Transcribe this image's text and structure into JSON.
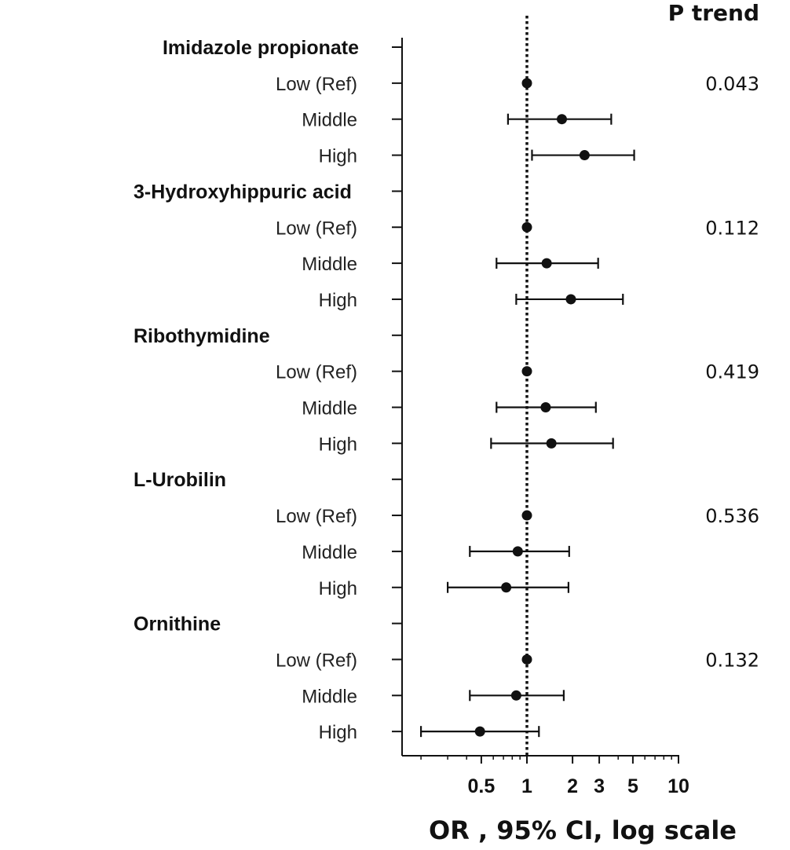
{
  "chart_data": {
    "type": "forest",
    "xlabel": "OR , 95% CI, log scale",
    "x_scale": "log",
    "xlim": [
      0.2,
      10
    ],
    "x_ticks": [
      0.5,
      1,
      2,
      3,
      5,
      10
    ],
    "reference_line": 1,
    "p_column_title": "P trend",
    "groups": [
      {
        "name": "Imidazole propionate",
        "p_trend": "0.043",
        "rows": [
          {
            "label": "Low (Ref)",
            "or": 1.0,
            "lo": null,
            "hi": null
          },
          {
            "label": "Middle",
            "or": 1.7,
            "lo": 0.75,
            "hi": 3.6
          },
          {
            "label": "High",
            "or": 2.4,
            "lo": 1.08,
            "hi": 5.1
          }
        ]
      },
      {
        "name": "3-Hydroxyhippuric acid",
        "p_trend": "0.112",
        "rows": [
          {
            "label": "Low (Ref)",
            "or": 1.0,
            "lo": null,
            "hi": null
          },
          {
            "label": "Middle",
            "or": 1.35,
            "lo": 0.63,
            "hi": 2.95
          },
          {
            "label": "High",
            "or": 1.95,
            "lo": 0.85,
            "hi": 4.3
          }
        ]
      },
      {
        "name": "Ribothymidine",
        "p_trend": "0.419",
        "rows": [
          {
            "label": "Low (Ref)",
            "or": 1.0,
            "lo": null,
            "hi": null
          },
          {
            "label": "Middle",
            "or": 1.33,
            "lo": 0.63,
            "hi": 2.85
          },
          {
            "label": "High",
            "or": 1.45,
            "lo": 0.58,
            "hi": 3.7
          }
        ]
      },
      {
        "name": "L-Urobilin",
        "p_trend": "0.536",
        "rows": [
          {
            "label": "Low (Ref)",
            "or": 1.0,
            "lo": null,
            "hi": null
          },
          {
            "label": "Middle",
            "or": 0.87,
            "lo": 0.42,
            "hi": 1.9
          },
          {
            "label": "High",
            "or": 0.73,
            "lo": 0.3,
            "hi": 1.88
          }
        ]
      },
      {
        "name": "Ornithine",
        "p_trend": "0.132",
        "rows": [
          {
            "label": "Low (Ref)",
            "or": 1.0,
            "lo": null,
            "hi": null
          },
          {
            "label": "Middle",
            "or": 0.85,
            "lo": 0.42,
            "hi": 1.75
          },
          {
            "label": "High",
            "or": 0.49,
            "lo": 0.2,
            "hi": 1.2
          }
        ]
      }
    ]
  }
}
